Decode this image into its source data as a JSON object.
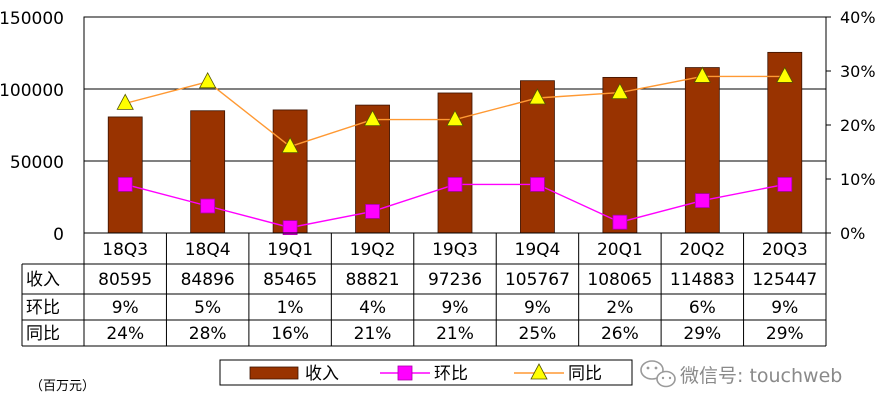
{
  "chart_data": {
    "type": "bar",
    "categories": [
      "18Q3",
      "18Q4",
      "19Q1",
      "19Q2",
      "19Q3",
      "19Q4",
      "20Q1",
      "20Q2",
      "20Q3"
    ],
    "series": [
      {
        "name": "收入",
        "kind": "bar",
        "axis": "left",
        "color": "#993300",
        "values": [
          80595,
          84896,
          85465,
          88821,
          97236,
          105767,
          108065,
          114883,
          125447
        ]
      },
      {
        "name": "环比",
        "kind": "line",
        "axis": "right",
        "color": "#ff00ff",
        "marker": "square",
        "values": [
          9,
          5,
          1,
          4,
          9,
          9,
          2,
          6,
          9
        ]
      },
      {
        "name": "同比",
        "kind": "line",
        "axis": "right",
        "color": "#ff9933",
        "marker": "triangle",
        "values": [
          24,
          28,
          16,
          21,
          21,
          25,
          26,
          29,
          29
        ]
      }
    ],
    "y_left": {
      "ylim": [
        0,
        150000
      ],
      "ticks": [
        "0",
        "50000",
        "100000",
        "150000"
      ]
    },
    "y_right": {
      "ylim": [
        0,
        40
      ],
      "ticks": [
        "0%",
        "10%",
        "20%",
        "30%",
        "40%"
      ]
    },
    "table_rows": [
      {
        "label": "收入",
        "cells": [
          "80595",
          "84896",
          "85465",
          "88821",
          "97236",
          "105767",
          "108065",
          "114883",
          "125447"
        ]
      },
      {
        "label": "环比",
        "cells": [
          "9%",
          "5%",
          "1%",
          "4%",
          "9%",
          "9%",
          "2%",
          "6%",
          "9%"
        ]
      },
      {
        "label": "同比",
        "cells": [
          "24%",
          "28%",
          "16%",
          "21%",
          "21%",
          "25%",
          "26%",
          "29%",
          "29%"
        ]
      }
    ],
    "legend_position": "bottom",
    "grid": true
  },
  "unit_note": "（百万元）",
  "watermark": "微信号: touchweb",
  "colors": {
    "bar": "#993300",
    "mom": "#ff00ff",
    "yoy": "#ff9933",
    "yoy_marker": "#ffff00"
  }
}
